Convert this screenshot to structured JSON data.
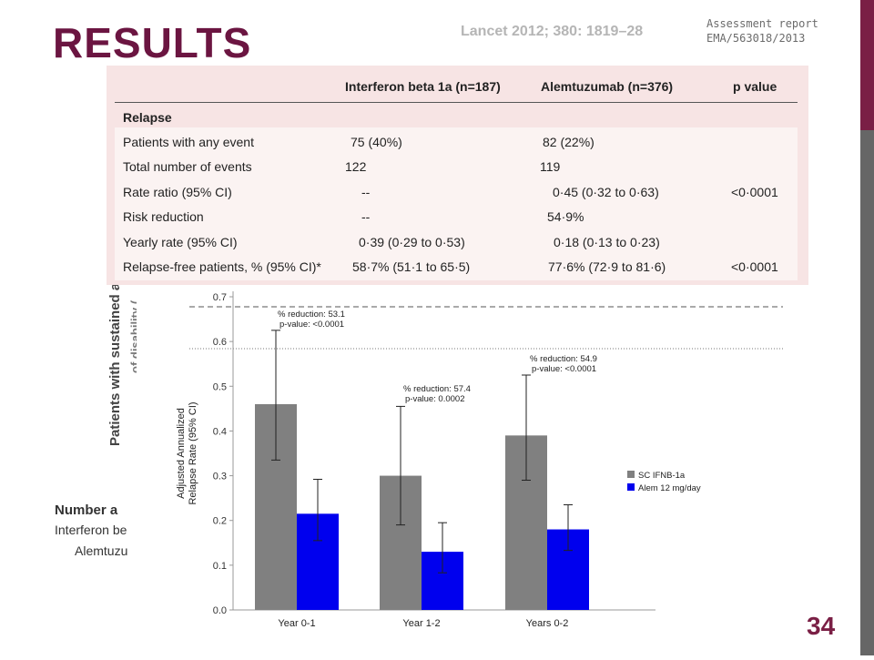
{
  "slide": {
    "title": "RESULTS",
    "citation": "Lancet 2012; 380: 1819–28",
    "report_ref_line1": "Assessment report",
    "report_ref_line2": "EMA/563018/2013",
    "page_number": "34"
  },
  "background_figure": {
    "ylabel": "Patients with sustained a",
    "ylabel2": "of disability (",
    "number_label": "Number a",
    "row1": "Interferon be",
    "row2": "Alemtuzu"
  },
  "table": {
    "headers": [
      "Interferon beta 1a (n=187)",
      "Alemtuzumab (n=376)",
      "p value"
    ],
    "section": "Relapse",
    "rows": [
      {
        "label": "Patients with any event",
        "ifn": "75 (40%)",
        "alem": "82 (22%)",
        "p": ""
      },
      {
        "label": "Total number of events",
        "ifn": "122",
        "alem": "119",
        "p": ""
      },
      {
        "label": "Rate ratio (95% CI)",
        "ifn": "--",
        "alem": "0·45 (0·32 to 0·63)",
        "p": "<0·0001"
      },
      {
        "label": "Risk reduction",
        "ifn": "--",
        "alem": "54·9%",
        "p": ""
      },
      {
        "label": "Yearly rate (95% CI)",
        "ifn": "0·39 (0·29 to 0·53)",
        "alem": "0·18 (0·13 to 0·23)",
        "p": ""
      },
      {
        "label": "Relapse-free patients, % (95% CI)*",
        "ifn": "58·7% (51·1 to 65·5)",
        "alem": "77·6% (72·9 to 81·6)",
        "p": "<0·0001"
      }
    ]
  },
  "chart_data": {
    "type": "bar",
    "title": "",
    "xlabel": "",
    "ylabel": "Adjusted Annualized Relapse Rate (95% CI)",
    "ylim": [
      0,
      0.7
    ],
    "yticks": [
      "0.0",
      "0.1",
      "0.2",
      "0.3",
      "0.4",
      "0.5",
      "0.6",
      "0.7"
    ],
    "categories": [
      "Year 0-1",
      "Year 1-2",
      "Years 0-2"
    ],
    "series": [
      {
        "name": "SC IFNB-1a",
        "color": "#808080",
        "values": [
          0.46,
          0.3,
          0.39
        ],
        "ci_low": [
          0.335,
          0.19,
          0.29
        ],
        "ci_high": [
          0.625,
          0.455,
          0.525
        ]
      },
      {
        "name": "Alem 12 mg/day",
        "color": "#0000ee",
        "values": [
          0.215,
          0.13,
          0.18
        ],
        "ci_low": [
          0.155,
          0.083,
          0.133
        ],
        "ci_high": [
          0.292,
          0.195,
          0.235
        ]
      }
    ],
    "annotations": [
      {
        "category": "Year 0-1",
        "line1": "% reduction: 53.1",
        "line2": "p-value: <0.0001"
      },
      {
        "category": "Year 1-2",
        "line1": "% reduction: 57.4",
        "line2": "p-value: 0.0002"
      },
      {
        "category": "Years 0-2",
        "line1": "% reduction: 54.9",
        "line2": "p-value: <0.0001"
      }
    ],
    "legend_position": "right",
    "grid": false
  }
}
